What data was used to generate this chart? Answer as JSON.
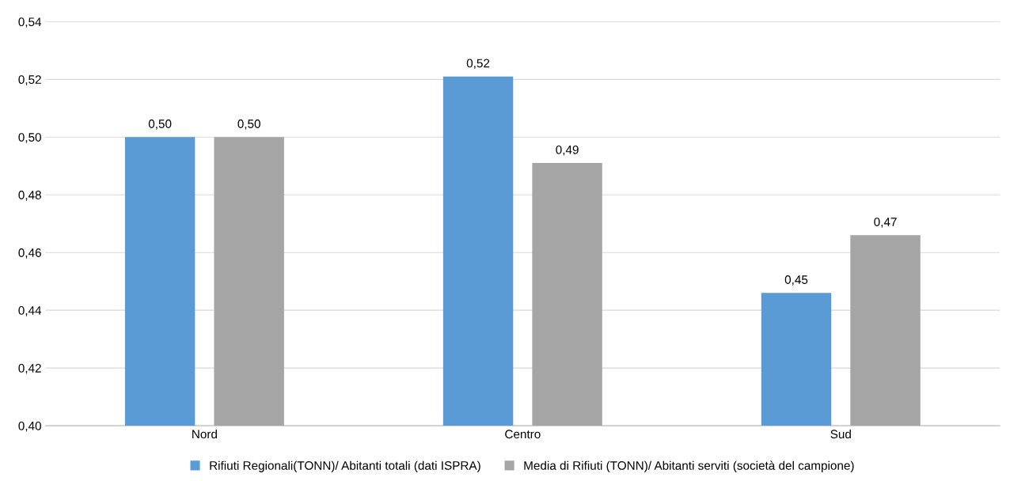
{
  "chart_data": {
    "type": "bar",
    "categories": [
      "Nord",
      "Centro",
      "Sud"
    ],
    "series": [
      {
        "name": "Rifiuti Regionali(TONN)/ Abitanti totali (dati ISPRA)",
        "color": "#5b9bd5",
        "values": [
          0.5,
          0.521,
          0.446
        ],
        "value_labels": [
          "0,50",
          "0,52",
          "0,45"
        ]
      },
      {
        "name": "Media di Rifiuti (TONN)/ Abitanti serviti (società del campione)",
        "color": "#a5a5a5",
        "values": [
          0.5,
          0.491,
          0.466
        ],
        "value_labels": [
          "0,50",
          "0,49",
          "0,47"
        ]
      }
    ],
    "ylim": [
      0.4,
      0.54
    ],
    "yticks": [
      {
        "value": 0.4,
        "label": "0,40"
      },
      {
        "value": 0.42,
        "label": "0,42"
      },
      {
        "value": 0.44,
        "label": "0,44"
      },
      {
        "value": 0.46,
        "label": "0,46"
      },
      {
        "value": 0.48,
        "label": "0,48"
      },
      {
        "value": 0.5,
        "label": "0,50"
      },
      {
        "value": 0.52,
        "label": "0,52"
      },
      {
        "value": 0.54,
        "label": "0,54"
      }
    ],
    "grid": "y",
    "legend": "bottom"
  }
}
